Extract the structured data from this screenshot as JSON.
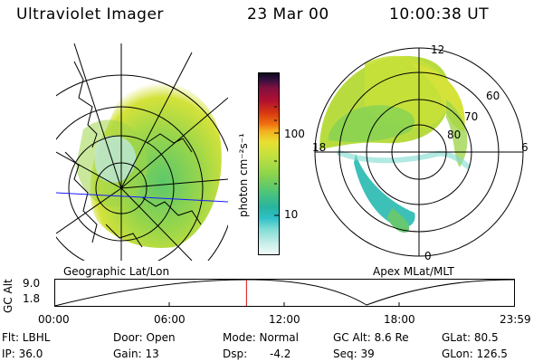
{
  "header": {
    "instrument": "Ultraviolet Imager",
    "date": "23 Mar 00",
    "time": "10:00:38 UT"
  },
  "left_panel": {
    "caption": "Geographic Lat/Lon"
  },
  "colorbar": {
    "unit_label": "photon cm⁻²s⁻¹",
    "tick_labels": [
      "100",
      "10"
    ],
    "colors": [
      "#d9f2ee",
      "#7fdcd4",
      "#2ec0c8",
      "#28b4a0",
      "#55c878",
      "#8ad44c",
      "#c0e040",
      "#e8e030",
      "#f4b020",
      "#f07010",
      "#d83a10",
      "#b01030",
      "#801040",
      "#3a1040",
      "#0a0a1e"
    ]
  },
  "right_panel": {
    "caption": "Apex MLat/MLT",
    "mlt_labels": {
      "top": "12",
      "left": "18",
      "right": "6",
      "bottom": "0"
    },
    "lat_labels": [
      "60",
      "70",
      "80"
    ]
  },
  "timeline": {
    "ylabel": "GC Alt",
    "ytick_top": "9.0",
    "ytick_bottom": "1.8",
    "xticks": [
      "00:00",
      "06:00",
      "12:00",
      "18:00",
      "23:59"
    ],
    "current_time_fraction": 0.417,
    "marker_color": "#d01010"
  },
  "info": {
    "flt": "Flt: LBHL",
    "ip": "IP: 36.0",
    "door": "Door: Open",
    "gain": "Gain: 13",
    "mode": "Mode: Normal",
    "dsp_label": "Dsp:",
    "dsp_value": "-4.2",
    "gc_alt": "GC Alt: 8.6 Re",
    "seq": "Seq: 39",
    "glat": "GLat:  80.5",
    "glon": "GLon: 126.5"
  }
}
